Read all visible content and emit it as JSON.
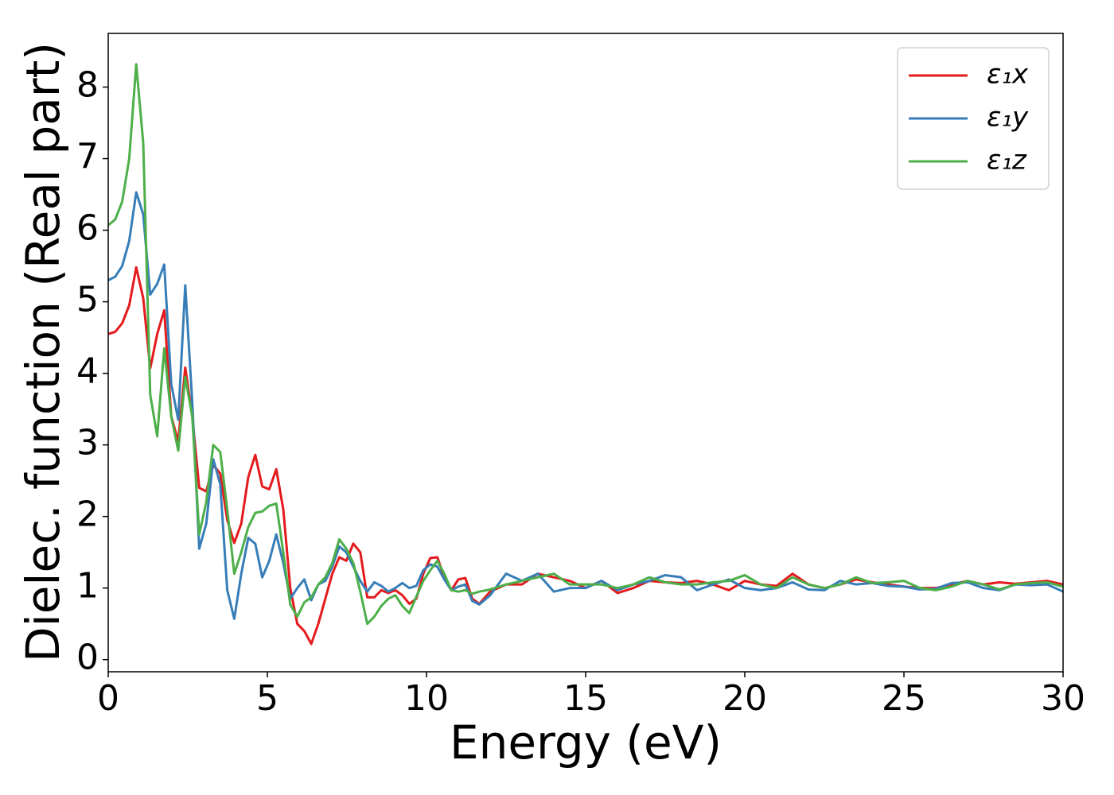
{
  "chart_data": {
    "type": "line",
    "xlabel": "Energy (eV)",
    "ylabel": "Dielec. function (Real part)",
    "x": [
      0,
      0.22,
      0.44,
      0.66,
      0.88,
      1.1,
      1.32,
      1.54,
      1.76,
      1.98,
      2.2,
      2.42,
      2.64,
      2.86,
      3.08,
      3.3,
      3.52,
      3.74,
      3.96,
      4.18,
      4.4,
      4.62,
      4.84,
      5.06,
      5.28,
      5.5,
      5.72,
      5.94,
      6.16,
      6.38,
      6.6,
      6.82,
      7.04,
      7.26,
      7.48,
      7.7,
      7.92,
      8.14,
      8.36,
      8.58,
      8.8,
      9.02,
      9.24,
      9.46,
      9.68,
      9.9,
      10.12,
      10.34,
      10.56,
      10.78,
      11,
      11.22,
      11.44,
      11.66,
      12,
      12.5,
      13,
      13.5,
      14,
      14.5,
      15,
      15.5,
      16,
      16.5,
      17,
      17.5,
      18,
      18.5,
      19,
      19.5,
      20,
      20.5,
      21,
      21.5,
      22,
      22.5,
      23,
      23.5,
      24,
      24.5,
      25,
      25.5,
      26,
      26.5,
      27,
      27.5,
      28,
      28.5,
      29,
      29.5,
      30
    ],
    "series": [
      {
        "name": "ε₁x",
        "color": "#e41a1c",
        "values": [
          4.55,
          4.58,
          4.7,
          4.95,
          5.48,
          5.05,
          4.07,
          4.55,
          4.88,
          3.4,
          3.05,
          4.08,
          3.4,
          2.4,
          2.35,
          2.72,
          2.6,
          1.95,
          1.63,
          1.9,
          2.55,
          2.86,
          2.42,
          2.38,
          2.66,
          2.1,
          1.0,
          0.5,
          0.4,
          0.22,
          0.5,
          0.85,
          1.2,
          1.43,
          1.38,
          1.62,
          1.5,
          0.87,
          0.87,
          0.97,
          0.93,
          0.97,
          0.9,
          0.78,
          0.85,
          1.2,
          1.42,
          1.43,
          1.15,
          0.97,
          1.12,
          1.14,
          0.85,
          0.78,
          0.95,
          1.05,
          1.05,
          1.2,
          1.15,
          1.1,
          1.0,
          1.1,
          0.93,
          1.0,
          1.1,
          1.08,
          1.07,
          1.1,
          1.05,
          0.97,
          1.1,
          1.05,
          1.03,
          1.2,
          1.05,
          1.0,
          1.05,
          1.12,
          1.08,
          1.05,
          1.02,
          1.0,
          1.0,
          1.05,
          1.1,
          1.05,
          1.08,
          1.06,
          1.08,
          1.1,
          1.05
        ]
      },
      {
        "name": "ε₁y",
        "color": "#377eb8",
        "values": [
          5.3,
          5.35,
          5.5,
          5.85,
          6.53,
          6.22,
          5.1,
          5.25,
          5.52,
          3.85,
          3.35,
          5.23,
          3.6,
          1.55,
          1.9,
          2.8,
          2.45,
          0.97,
          0.57,
          1.2,
          1.7,
          1.62,
          1.15,
          1.38,
          1.75,
          1.35,
          0.85,
          1.0,
          1.12,
          0.83,
          1.05,
          1.1,
          1.3,
          1.58,
          1.5,
          1.3,
          1.1,
          0.95,
          1.08,
          1.03,
          0.95,
          1.0,
          1.07,
          1.0,
          1.03,
          1.25,
          1.33,
          1.3,
          1.12,
          0.97,
          1.02,
          1.05,
          0.82,
          0.77,
          0.9,
          1.2,
          1.1,
          1.2,
          0.95,
          1.0,
          1.0,
          1.1,
          0.97,
          1.05,
          1.1,
          1.18,
          1.15,
          0.97,
          1.05,
          1.12,
          1.0,
          0.97,
          1.0,
          1.08,
          0.98,
          0.97,
          1.1,
          1.05,
          1.07,
          1.03,
          1.02,
          0.98,
          0.99,
          1.07,
          1.08,
          1.0,
          0.97,
          1.05,
          1.04,
          1.05,
          0.95
        ]
      },
      {
        "name": "ε₁z",
        "color": "#4daf4a",
        "values": [
          6.07,
          6.15,
          6.4,
          7.0,
          8.32,
          7.22,
          3.7,
          3.12,
          4.35,
          3.4,
          2.92,
          3.95,
          3.4,
          1.75,
          2.2,
          3.0,
          2.9,
          2.1,
          1.2,
          1.5,
          1.85,
          2.05,
          2.07,
          2.15,
          2.18,
          1.5,
          0.77,
          0.6,
          0.8,
          0.87,
          1.05,
          1.15,
          1.35,
          1.68,
          1.55,
          1.35,
          0.95,
          0.5,
          0.6,
          0.75,
          0.85,
          0.9,
          0.75,
          0.65,
          0.88,
          1.1,
          1.25,
          1.38,
          1.2,
          0.97,
          0.95,
          0.97,
          0.92,
          0.95,
          0.98,
          1.05,
          1.1,
          1.15,
          1.2,
          1.05,
          1.05,
          1.05,
          1.0,
          1.05,
          1.15,
          1.08,
          1.05,
          1.05,
          1.08,
          1.1,
          1.18,
          1.05,
          1.0,
          1.15,
          1.05,
          1.0,
          1.05,
          1.15,
          1.07,
          1.08,
          1.1,
          1.0,
          0.97,
          1.02,
          1.1,
          1.05,
          0.98,
          1.05,
          1.07,
          1.08,
          1.02
        ]
      }
    ],
    "xlim": [
      0,
      30
    ],
    "xticks": [
      0,
      5,
      10,
      15,
      20,
      25,
      30
    ],
    "ylim": [
      -0.17,
      8.75
    ],
    "yticks": [
      0,
      1,
      2,
      3,
      4,
      5,
      6,
      7,
      8
    ],
    "grid": false,
    "legend": "upper right"
  }
}
